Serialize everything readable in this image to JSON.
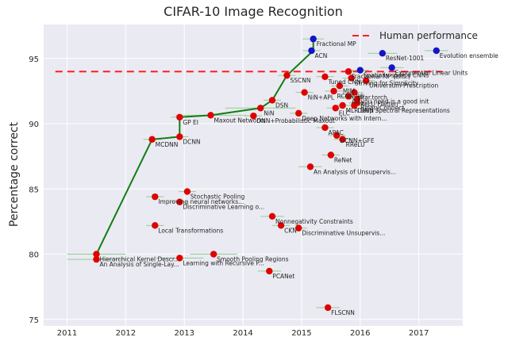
{
  "chart_data": {
    "type": "scatter",
    "title": "CIFAR-10 Image Recognition",
    "xlabel": "",
    "ylabel": "Percentage correct",
    "xlim": [
      2010.6,
      2017.75
    ],
    "ylim": [
      74.5,
      97.6
    ],
    "xticks": [
      2011,
      2012,
      2013,
      2014,
      2015,
      2016,
      2017
    ],
    "yticks": [
      75,
      80,
      85,
      90,
      95
    ],
    "grid": true,
    "legend": {
      "position": "top-right",
      "label": "Human performance"
    },
    "human_performance": 94,
    "colors": {
      "background": "#eaeaf2",
      "grid": "#ffffff",
      "sota": "#1414c8",
      "other": "#e00000",
      "frontier": "#127d12",
      "human": "#ff1e1e",
      "errorbar": "#90d090"
    },
    "frontier_line": [
      {
        "x": 2011.5,
        "y": 80.0
      },
      {
        "x": 2012.45,
        "y": 88.8
      },
      {
        "x": 2012.92,
        "y": 89.0
      },
      {
        "x": 2012.92,
        "y": 90.5
      },
      {
        "x": 2013.45,
        "y": 90.65
      },
      {
        "x": 2014.3,
        "y": 91.2
      },
      {
        "x": 2014.5,
        "y": 91.8
      },
      {
        "x": 2014.75,
        "y": 93.7
      },
      {
        "x": 2015.2,
        "y": 95.6
      },
      {
        "x": 2015.2,
        "y": 96.5
      }
    ],
    "points": [
      {
        "label": "Fractional MP",
        "x": 2015.2,
        "y": 96.5,
        "err": 0.18,
        "color": "sota"
      },
      {
        "label": "ACN",
        "x": 2015.17,
        "y": 95.6,
        "err": 0.15,
        "color": "sota"
      },
      {
        "label": "ResNet-1001",
        "x": 2016.38,
        "y": 95.4,
        "err": 0.25,
        "color": "sota"
      },
      {
        "label": "Evolution ensemble",
        "x": 2017.3,
        "y": 95.6,
        "err": 0.2,
        "color": "sota"
      },
      {
        "label": "Exponential Linear Units",
        "x": 2016.54,
        "y": 94.3,
        "err": 0.2,
        "color": "sota"
      },
      {
        "label": "Spatially-sparse CNNs",
        "x": 2016.0,
        "y": 94.1,
        "err": 0.15,
        "color": "sota"
      },
      {
        "label": "Fractional MP (ens.)",
        "x": 2015.8,
        "y": 94.0,
        "err": 0.15,
        "color": "other"
      },
      {
        "label": "SSCNN",
        "x": 2014.75,
        "y": 93.7,
        "err": 0.15,
        "color": "other"
      },
      {
        "label": "Tuned CNN",
        "x": 2015.4,
        "y": 93.6,
        "err": 0.15,
        "color": "other"
      },
      {
        "label": "Striving for Simplicity",
        "x": 2015.85,
        "y": 93.5,
        "err": 0.15,
        "color": "other"
      },
      {
        "label": "Universum Prescription",
        "x": 2016.1,
        "y": 93.3,
        "err": 0.15,
        "color": "other"
      },
      {
        "label": "MIM",
        "x": 2015.65,
        "y": 92.9,
        "err": 0.15,
        "color": "other"
      },
      {
        "label": "RCNN-96",
        "x": 2015.55,
        "y": 92.5,
        "err": 0.15,
        "color": "other"
      },
      {
        "label": "NiN+APL",
        "x": 2015.05,
        "y": 92.4,
        "err": 0.15,
        "color": "other"
      },
      {
        "label": "cifar.torch",
        "x": 2015.9,
        "y": 92.4,
        "err": 0.15,
        "color": "other"
      },
      {
        "label": "All you need is a good init",
        "x": 2015.8,
        "y": 92.1,
        "err": 0.15,
        "color": "other"
      },
      {
        "label": "ReLU Flatten",
        "x": 2015.95,
        "y": 91.9,
        "err": 0.15,
        "color": "other"
      },
      {
        "label": "BinaryConnect",
        "x": 2015.95,
        "y": 91.6,
        "err": 0.15,
        "color": "other"
      },
      {
        "label": "MLR DNN",
        "x": 2015.7,
        "y": 91.4,
        "err": 0.15,
        "color": "other"
      },
      {
        "label": "ELC",
        "x": 2015.58,
        "y": 91.2,
        "err": 0.15,
        "color": "other"
      },
      {
        "label": "Deep Spectral Representations",
        "x": 2015.9,
        "y": 91.4,
        "err": 0.15,
        "color": "other"
      },
      {
        "label": "Deep Networks with Intern...",
        "x": 2014.95,
        "y": 90.8,
        "err": 0.15,
        "color": "other"
      },
      {
        "label": "DSN",
        "x": 2014.5,
        "y": 91.8,
        "err": 0.15,
        "color": "other"
      },
      {
        "label": "NiN",
        "x": 2014.3,
        "y": 91.2,
        "err": 0.6,
        "color": "other"
      },
      {
        "label": "DNN+Probabilistic Maxout",
        "x": 2014.18,
        "y": 90.6,
        "err": 0.15,
        "color": "other"
      },
      {
        "label": "Maxout Networks",
        "x": 2013.45,
        "y": 90.65,
        "err": 0.6,
        "color": "other"
      },
      {
        "label": "GP EI",
        "x": 2012.92,
        "y": 90.5,
        "err": 0.15,
        "color": "other"
      },
      {
        "label": "DCNN",
        "x": 2012.92,
        "y": 89.0,
        "err": 0.15,
        "color": "other"
      },
      {
        "label": "MCDNN",
        "x": 2012.45,
        "y": 88.8,
        "err": 0.15,
        "color": "other"
      },
      {
        "label": "APAC",
        "x": 2015.4,
        "y": 89.7,
        "err": 0.15,
        "color": "other"
      },
      {
        "label": "DCNN+GFE",
        "x": 2015.6,
        "y": 89.1,
        "err": 0.15,
        "color": "other"
      },
      {
        "label": "RReLU",
        "x": 2015.7,
        "y": 88.8,
        "err": 0.15,
        "color": "other"
      },
      {
        "label": "ReNet",
        "x": 2015.5,
        "y": 87.6,
        "err": 0.15,
        "color": "other"
      },
      {
        "label": "An Analysis of Unsupervis...",
        "x": 2015.15,
        "y": 86.7,
        "err": 0.2,
        "color": "other"
      },
      {
        "label": "Stochastic Pooling",
        "x": 2013.05,
        "y": 84.8,
        "err": 0.15,
        "color": "other"
      },
      {
        "label": "Improving neural networks...",
        "x": 2012.5,
        "y": 84.4,
        "err": 0.15,
        "color": "other"
      },
      {
        "label": "Discriminative Learning o...",
        "x": 2012.92,
        "y": 84.0,
        "err": 0.15,
        "color": "other"
      },
      {
        "label": "Local Transformations",
        "x": 2012.5,
        "y": 82.2,
        "err": 0.15,
        "color": "other"
      },
      {
        "label": "Nonnegativity Constraints",
        "x": 2014.5,
        "y": 82.9,
        "err": 0.2,
        "color": "other"
      },
      {
        "label": "CKN",
        "x": 2014.65,
        "y": 82.2,
        "err": 0.15,
        "color": "other"
      },
      {
        "label": "Discriminative Unsupervis...",
        "x": 2014.95,
        "y": 82.0,
        "err": 0.15,
        "color": "other"
      },
      {
        "label": "Hierarchical Kernel Descr...",
        "x": 2011.5,
        "y": 80.0,
        "err": 0.5,
        "color": "other"
      },
      {
        "label": "An Analysis of Single-Lay...",
        "x": 2011.5,
        "y": 79.6,
        "err": 0.5,
        "color": "other"
      },
      {
        "label": "Smooth Pooling Regions",
        "x": 2013.5,
        "y": 80.0,
        "err": 0.4,
        "color": "other"
      },
      {
        "label": "Learning with Recursive P...",
        "x": 2012.92,
        "y": 79.7,
        "err": 0.4,
        "color": "other"
      },
      {
        "label": "PCANet",
        "x": 2014.45,
        "y": 78.7,
        "err": 0.2,
        "color": "other"
      },
      {
        "label": "FLSCNN",
        "x": 2015.45,
        "y": 75.9,
        "err": 0.2,
        "color": "other"
      }
    ]
  }
}
